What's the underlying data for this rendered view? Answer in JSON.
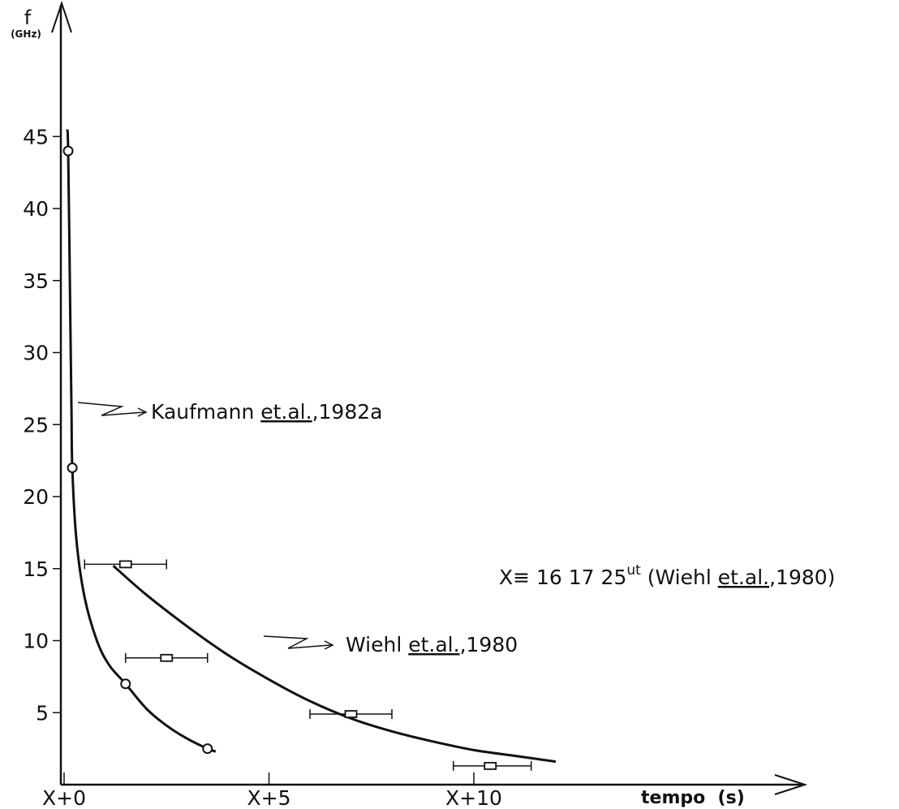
{
  "chart_data": {
    "type": "scatter",
    "ylabel": "f",
    "yunit": "(GHz)",
    "xlabel": "tempo  (s)",
    "xlim": [
      0,
      13
    ],
    "ylim": [
      0,
      48
    ],
    "xticks": [
      {
        "value": 0,
        "label": "X+0"
      },
      {
        "value": 5,
        "label": "X+5"
      },
      {
        "value": 10,
        "label": "X+10"
      }
    ],
    "yticks": [
      {
        "value": 5,
        "label": "5"
      },
      {
        "value": 10,
        "label": "10"
      },
      {
        "value": 15,
        "label": "15"
      },
      {
        "value": 20,
        "label": "20"
      },
      {
        "value": 25,
        "label": "25"
      },
      {
        "value": 30,
        "label": "30"
      },
      {
        "value": 35,
        "label": "35"
      },
      {
        "value": 40,
        "label": "40"
      },
      {
        "value": 45,
        "label": "45"
      }
    ],
    "series": [
      {
        "name": "Kaufmann et.al.,1982a",
        "marker": "circle",
        "points": [
          {
            "x": 0.1,
            "y": 44
          },
          {
            "x": 0.2,
            "y": 22
          },
          {
            "x": 1.5,
            "y": 7
          },
          {
            "x": 3.5,
            "y": 2.5
          }
        ],
        "curve": [
          [
            0.08,
            45.5
          ],
          [
            0.1,
            44
          ],
          [
            0.14,
            35
          ],
          [
            0.18,
            26
          ],
          [
            0.2,
            22
          ],
          [
            0.3,
            17
          ],
          [
            0.5,
            13
          ],
          [
            0.8,
            10
          ],
          [
            1.1,
            8.3
          ],
          [
            1.5,
            7
          ],
          [
            2.0,
            5.3
          ],
          [
            2.5,
            4.1
          ],
          [
            3.0,
            3.2
          ],
          [
            3.5,
            2.5
          ],
          [
            3.7,
            2.3
          ]
        ]
      },
      {
        "name": "Wiehl et.al.,1980",
        "marker": "square",
        "points": [
          {
            "x": 1.5,
            "y": 15.3,
            "xerr": [
              0.5,
              2.5
            ]
          },
          {
            "x": 2.5,
            "y": 8.8,
            "xerr": [
              1.5,
              3.5
            ]
          },
          {
            "x": 7.0,
            "y": 4.9,
            "xerr": [
              6.0,
              8.0
            ]
          },
          {
            "x": 10.4,
            "y": 1.3,
            "xerr": [
              9.5,
              11.4
            ]
          }
        ],
        "curve": [
          [
            1.2,
            15.2
          ],
          [
            2,
            13.2
          ],
          [
            3,
            11.0
          ],
          [
            4,
            9.0
          ],
          [
            5,
            7.3
          ],
          [
            6,
            5.8
          ],
          [
            7,
            4.6
          ],
          [
            8,
            3.7
          ],
          [
            9,
            3.0
          ],
          [
            10,
            2.4
          ],
          [
            11,
            2.0
          ],
          [
            12,
            1.6
          ]
        ]
      }
    ],
    "annotations": {
      "kaufmann": {
        "prefix": "Kaufmann ",
        "underlined": "et.al.",
        "suffix": ",1982a"
      },
      "wiehl": {
        "prefix": "Wiehl ",
        "underlined": "et.al.",
        "suffix": ",1980"
      },
      "note": {
        "x_def": "X≡ 16 17 25",
        "sup": "ut",
        "prefix": " (Wiehl ",
        "underlined": "et.al.",
        "suffix": ",1980)"
      }
    }
  }
}
